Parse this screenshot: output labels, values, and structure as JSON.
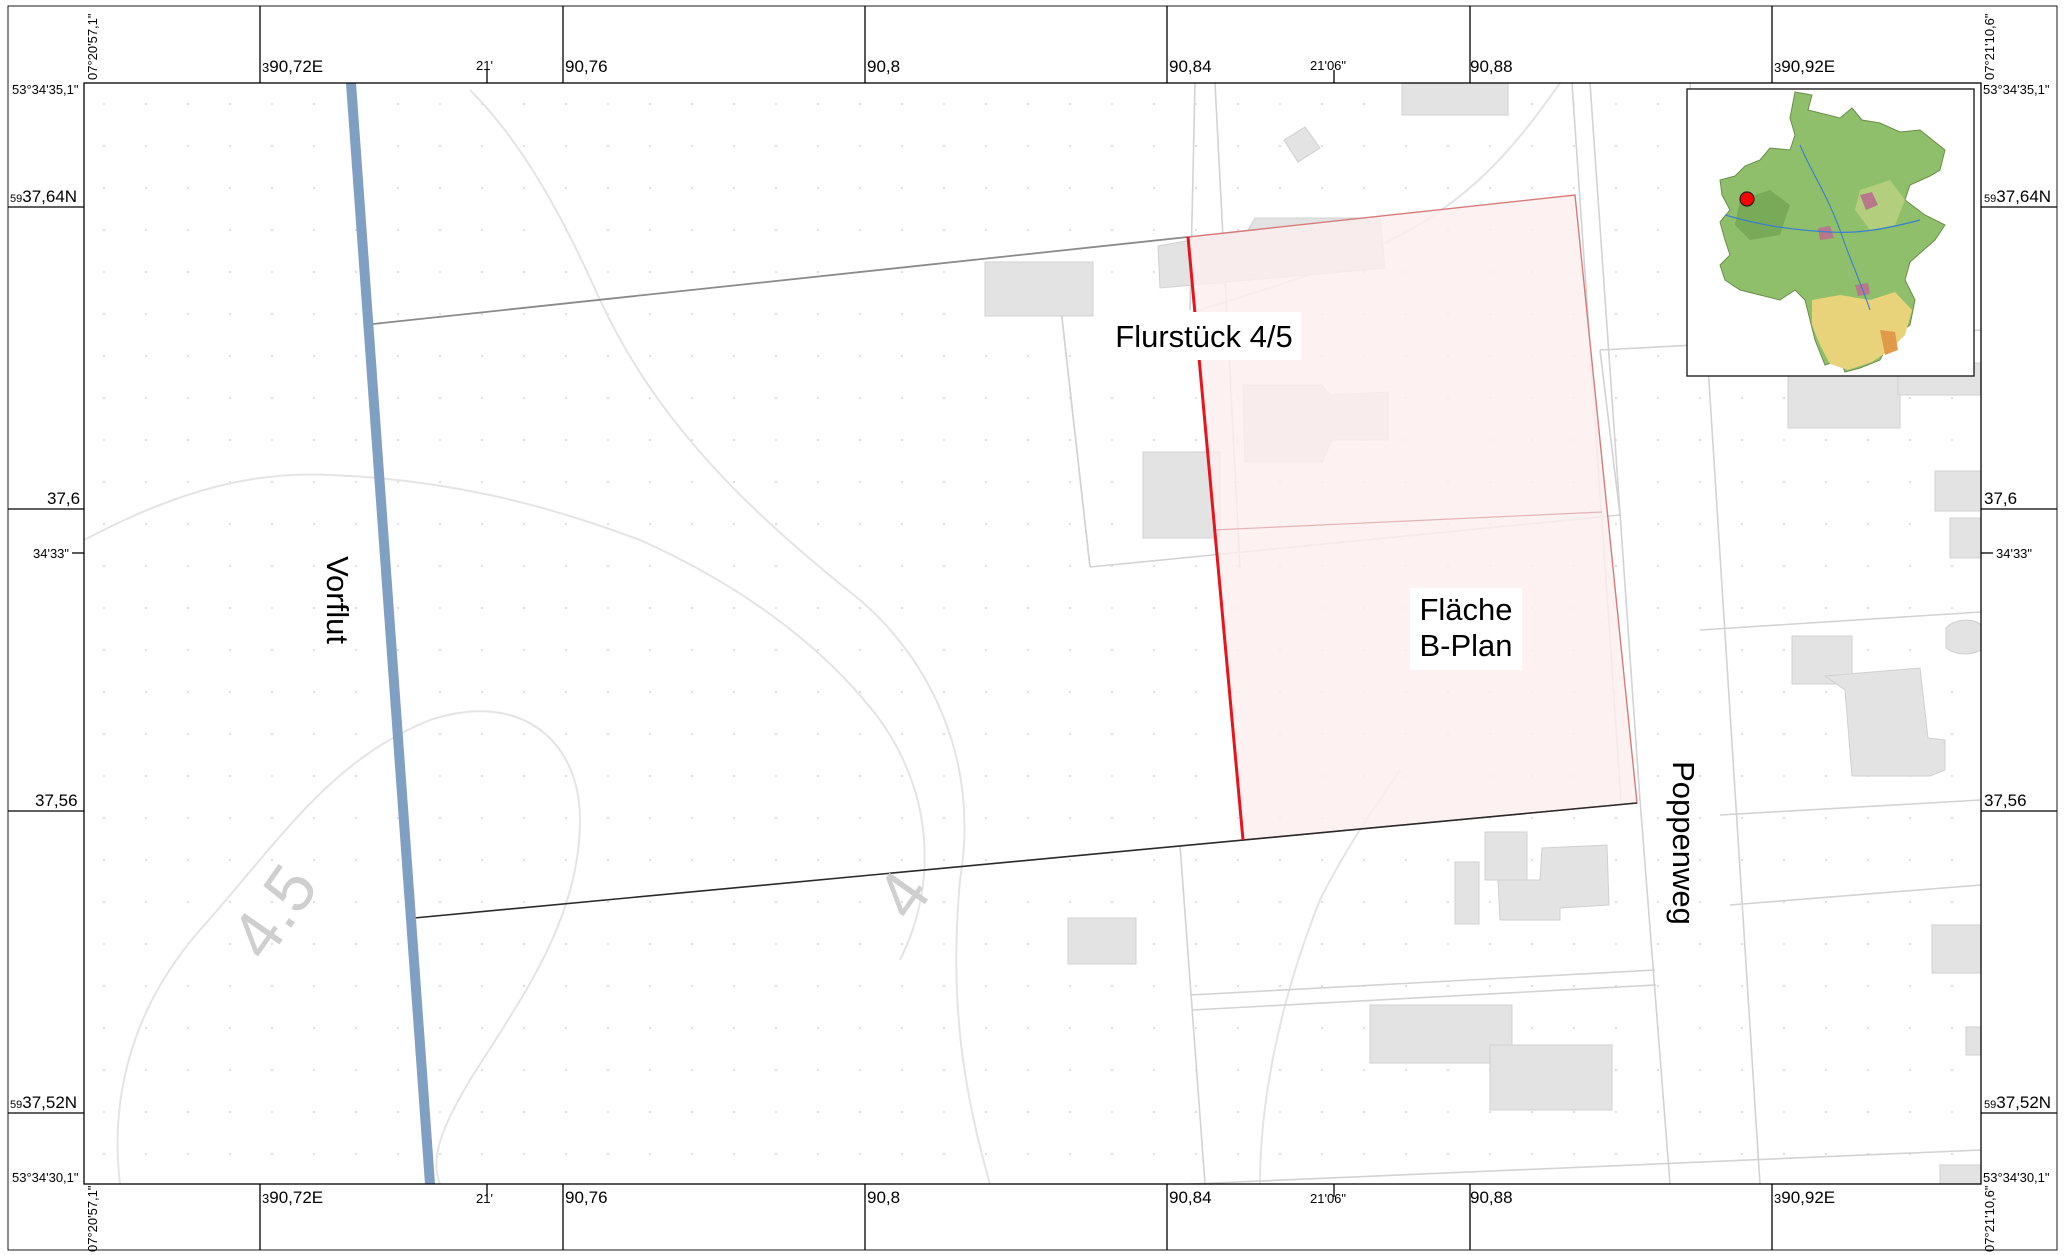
{
  "map": {
    "labels": {
      "flurstueck": "Flurstück 4/5",
      "flaeche_line1": "Fläche",
      "flaeche_line2": "B-Plan",
      "vorflut": "Vorflut",
      "road": "Poppenweg"
    },
    "contour_labels": [
      "4.5",
      "4"
    ],
    "colors": {
      "plan_area_fill": "#fdeeee",
      "plan_area_border": "#d77a7a",
      "boundary_red": "#e8141c",
      "watercourse": "#7f9fc3",
      "building": "#e3e3e3",
      "parcel_line": "#d2d2d2",
      "contour": "#e6e6e6"
    }
  },
  "frame": {
    "top": {
      "prefixed": [
        {
          "prefix": "3",
          "value": "90,72E"
        },
        {
          "prefix": "3",
          "value": "90,92E"
        }
      ],
      "plain": [
        "90,76",
        "90,8",
        "90,84",
        "90,88"
      ],
      "minutes": [
        "21'",
        "21'06\""
      ]
    },
    "bottom": {
      "prefixed": [
        {
          "prefix": "3",
          "value": "90,72E"
        },
        {
          "prefix": "3",
          "value": "90,92E"
        }
      ],
      "plain": [
        "90,76",
        "90,8",
        "90,84",
        "90,88"
      ],
      "minutes": [
        "21'",
        "21'06\""
      ]
    },
    "left": {
      "prefixed": [
        {
          "prefix": "59",
          "value": "37,64N"
        },
        {
          "prefix": "59",
          "value": "37,52N"
        }
      ],
      "plain": [
        "37,6",
        "37,56"
      ],
      "minutes": [
        "34'33\""
      ]
    },
    "right": {
      "prefixed": [
        {
          "prefix": "59",
          "value": "37,64N"
        },
        {
          "prefix": "59",
          "value": "37,52N"
        }
      ],
      "plain": [
        "37,6",
        "37,56"
      ],
      "minutes": [
        "34'33\""
      ]
    },
    "corners": {
      "top_left_lat": "53°34'35,1\"",
      "top_right_lat": "53°34'35,1\"",
      "bottom_left_lat": "53°34'30,1\"",
      "bottom_right_lat": "53°34'30,1\"",
      "top_left_lon": "07°20'57,1\"",
      "top_right_lon": "07°21'10,6\"",
      "bottom_left_lon": "07°20'57,1\"",
      "bottom_right_lon": "07°21'10,6\""
    }
  },
  "inset": {
    "marker_color": "#ff0000",
    "land_color": "#8fbf6a",
    "south_color": "#e8d27a"
  }
}
